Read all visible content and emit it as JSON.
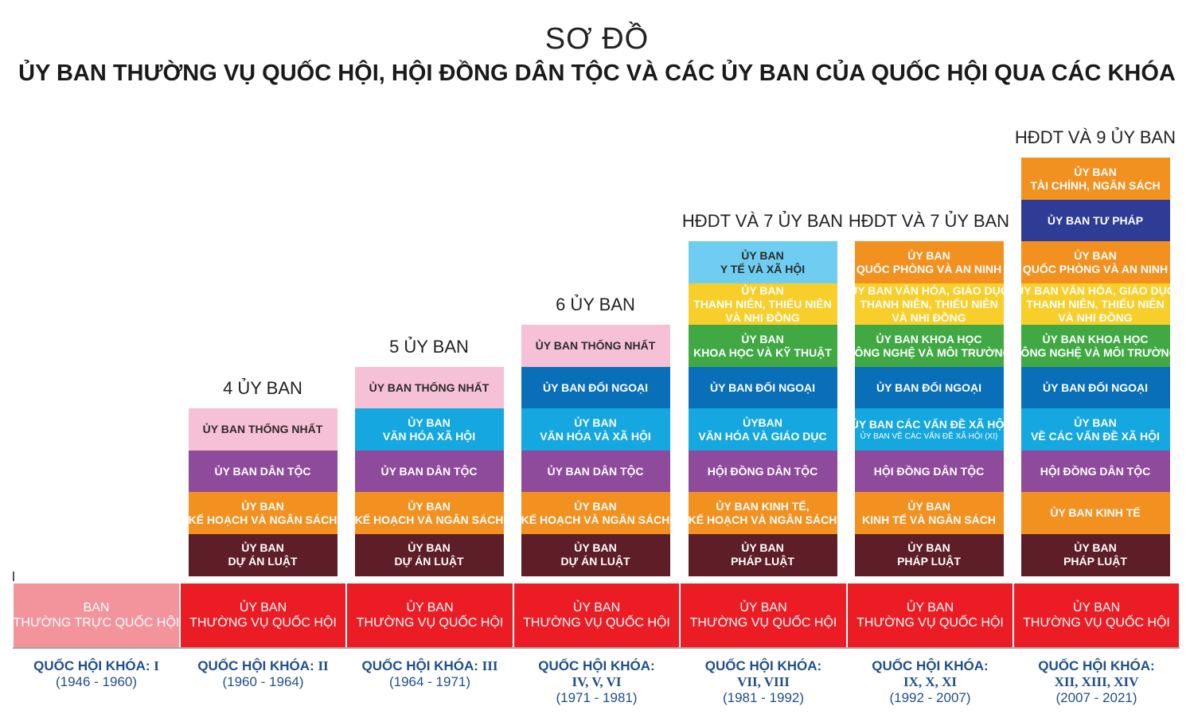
{
  "title": "SƠ ĐỒ",
  "subtitle": "ỦY BAN THƯỜNG VỤ QUỐC HỘI, HỘI ĐỒNG DÂN TỘC VÀ CÁC ỦY BAN CỦA QUỐC HỘI QUA CÁC KHÓA",
  "colors": {
    "pink": "#f6c1d6",
    "purple": "#8e4b9c",
    "orange": "#f39120",
    "maroon": "#5d1e28",
    "sky": "#14a7e0",
    "blue": "#0a6fb9",
    "light_sky": "#6fcdf1",
    "yellow": "#f8cf2a",
    "green": "#41a943",
    "navy": "#2e3c96",
    "red": "#ec1c24",
    "salmon": "#f3939c",
    "term_text": "#1e4f8a"
  },
  "first_term": {
    "base": [
      "BAN",
      "THƯỜNG TRỰC QUỐC HỘI"
    ],
    "label": "QUỐC HỘI KHÓA:",
    "number": "I",
    "years": "(1946 - 1960)"
  },
  "columns": [
    {
      "heading": "4 ỦY BAN",
      "blocks": [
        {
          "lines": [
            "ỦY BAN THỐNG NHẤT"
          ],
          "color": "pink",
          "text_color": "dark"
        },
        {
          "lines": [
            "ỦY BAN DÂN TỘC"
          ],
          "color": "purple"
        },
        {
          "lines": [
            "ỦY BAN",
            "KẾ HOẠCH VÀ NGÂN SÁCH"
          ],
          "color": "orange"
        },
        {
          "lines": [
            "ỦY BAN",
            "DỰ ÁN LUẬT"
          ],
          "color": "maroon"
        }
      ],
      "base": [
        "ỦY BAN",
        "THƯỜNG VỤ QUỐC HỘI"
      ],
      "term_label": "QUỐC HỘI KHÓA:",
      "term_number": "II",
      "years": "(1960 - 1964)"
    },
    {
      "heading": "5 ỦY BAN",
      "blocks": [
        {
          "lines": [
            "ỦY BAN THỐNG NHẤT"
          ],
          "color": "pink",
          "text_color": "dark"
        },
        {
          "lines": [
            "ỦY BAN",
            "VĂN HÓA XÃ HỘI"
          ],
          "color": "sky"
        },
        {
          "lines": [
            "ỦY BAN DÂN TỘC"
          ],
          "color": "purple"
        },
        {
          "lines": [
            "ỦY BAN",
            "KẾ HOẠCH VÀ NGÂN SÁCH"
          ],
          "color": "orange"
        },
        {
          "lines": [
            "ỦY BAN",
            "DỰ ÁN LUẬT"
          ],
          "color": "maroon"
        }
      ],
      "base": [
        "ỦY BAN",
        "THƯỜNG VỤ QUỐC HỘI"
      ],
      "term_label": "QUỐC HỘI KHÓA:",
      "term_number": "III",
      "years": "(1964 - 1971)"
    },
    {
      "heading": "6 ỦY BAN",
      "blocks": [
        {
          "lines": [
            "ỦY BAN THỐNG NHẤT"
          ],
          "color": "pink",
          "text_color": "dark"
        },
        {
          "lines": [
            "ỦY BAN ĐỐI NGOẠI"
          ],
          "color": "blue"
        },
        {
          "lines": [
            "ỦY BAN",
            "VĂN HÓA VÀ XÃ HỘI"
          ],
          "color": "sky"
        },
        {
          "lines": [
            "ỦY BAN DÂN TỘC"
          ],
          "color": "purple"
        },
        {
          "lines": [
            "ỦY BAN",
            "KẾ HOẠCH VÀ NGÂN SÁCH"
          ],
          "color": "orange"
        },
        {
          "lines": [
            "ỦY BAN",
            "DỰ ÁN LUẬT"
          ],
          "color": "maroon"
        }
      ],
      "base": [
        "ỦY BAN",
        "THƯỜNG VỤ QUỐC HỘI"
      ],
      "term_label": "QUỐC HỘI KHÓA:",
      "term_number": "IV, V, VI",
      "years": "(1971 - 1981)"
    },
    {
      "heading": "HĐDT VÀ 7 ỦY BAN",
      "blocks": [
        {
          "lines": [
            "ỦY BAN",
            "Y TẾ VÀ XÃ HỘI"
          ],
          "color": "light_sky",
          "text_color": "dark"
        },
        {
          "lines": [
            "ỦY BAN",
            "THANH NIÊN, THIẾU NIÊN",
            "VÀ NHI ĐỒNG"
          ],
          "color": "yellow"
        },
        {
          "lines": [
            "ỦY BAN",
            "KHOA HỌC VÀ KỸ THUẬT"
          ],
          "color": "green"
        },
        {
          "lines": [
            "ỦY BAN ĐỐI NGOẠI"
          ],
          "color": "blue"
        },
        {
          "lines": [
            "ỦYBAN",
            "VĂN HÓA VÀ GIÁO DỤC"
          ],
          "color": "sky"
        },
        {
          "lines": [
            "HỘI ĐỒNG DÂN TỘC"
          ],
          "color": "purple"
        },
        {
          "lines": [
            "ỦY BAN KINH TẾ,",
            "KẾ HOẠCH VÀ NGÂN SÁCH"
          ],
          "color": "orange"
        },
        {
          "lines": [
            "ỦY BAN",
            "PHÁP LUẬT"
          ],
          "color": "maroon"
        }
      ],
      "base": [
        "ỦY BAN",
        "THƯỜNG VỤ QUỐC HỘI"
      ],
      "term_label": "QUỐC HỘI KHÓA:",
      "term_number": "VII, VIII",
      "years": "(1981 - 1992)"
    },
    {
      "heading": "HĐDT VÀ 7 ỦY BAN",
      "blocks": [
        {
          "lines": [
            "ỦY BAN",
            "QUỐC PHÒNG VÀ AN NINH"
          ],
          "color": "orange"
        },
        {
          "lines": [
            "ỦY BAN VĂN HÓA, GIÁO DỤC",
            "THANH NIÊN, THIẾU NIÊN",
            "VÀ NHI ĐỒNG"
          ],
          "color": "yellow"
        },
        {
          "lines": [
            "ỦY BAN KHOA HỌC",
            "CÔNG NGHỆ VÀ MÔI TRƯỜNG"
          ],
          "color": "green"
        },
        {
          "lines": [
            "ỦY BAN ĐỐI NGOẠI"
          ],
          "color": "blue"
        },
        {
          "lines": [
            "ỦY BAN CÁC VẤN ĐỀ XÃ HỘI"
          ],
          "small": "ỦY BAN VỀ CÁC VẤN ĐỀ XÃ HỘI (XI)",
          "color": "sky"
        },
        {
          "lines": [
            "HỘI ĐỒNG DÂN TỘC"
          ],
          "color": "purple"
        },
        {
          "lines": [
            "ỦY BAN",
            "KINH TẾ VÀ NGÂN SÁCH"
          ],
          "color": "orange"
        },
        {
          "lines": [
            "ỦY BAN",
            "PHÁP LUẬT"
          ],
          "color": "maroon"
        }
      ],
      "base": [
        "ỦY BAN",
        "THƯỜNG VỤ QUỐC HỘI"
      ],
      "term_label": "QUỐC HỘI KHÓA:",
      "term_number": "IX, X, XI",
      "years": "(1992 - 2007)"
    },
    {
      "heading": "HĐDT VÀ 9 ỦY BAN",
      "blocks": [
        {
          "lines": [
            "ỦY BAN",
            "TÀI CHÍNH, NGÂN SÁCH"
          ],
          "color": "orange"
        },
        {
          "lines": [
            "ỦY BAN TƯ PHÁP"
          ],
          "color": "navy"
        },
        {
          "lines": [
            "ỦY BAN",
            "QUỐC PHÒNG VÀ AN NINH"
          ],
          "color": "orange"
        },
        {
          "lines": [
            "ỦY BAN VĂN HÓA, GIÁO DỤC",
            "THANH NIÊN, THIẾU NIÊN",
            "VÀ NHI ĐỒNG"
          ],
          "color": "yellow"
        },
        {
          "lines": [
            "ỦY BAN KHOA HỌC",
            "CÔNG NGHỆ VÀ MÔI TRƯỜNG"
          ],
          "color": "green"
        },
        {
          "lines": [
            "ỦY BAN ĐỐI NGOẠI"
          ],
          "color": "blue"
        },
        {
          "lines": [
            "ỦY BAN",
            "VỀ CÁC VẤN ĐỀ XÃ HỘI"
          ],
          "color": "sky"
        },
        {
          "lines": [
            "HỘI ĐỒNG DÂN TỘC"
          ],
          "color": "purple"
        },
        {
          "lines": [
            "ỦY BAN KINH TẾ"
          ],
          "color": "orange"
        },
        {
          "lines": [
            "ỦY BAN",
            "PHÁP LUẬT"
          ],
          "color": "maroon"
        }
      ],
      "base": [
        "ỦY BAN",
        "THƯỜNG VỤ QUỐC HỘI"
      ],
      "term_label": "QUỐC HỘI KHÓA:",
      "term_number": "XII, XIII, XIV",
      "years": "(2007 - 2021)"
    }
  ]
}
